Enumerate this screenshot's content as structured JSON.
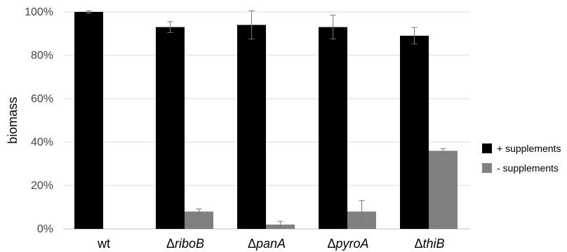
{
  "chart_data": {
    "type": "bar",
    "categories": [
      "wt",
      "riboB",
      "panA",
      "pyroA",
      "thiB"
    ],
    "category_prefix": [
      "",
      "Δ",
      "Δ",
      "Δ",
      "Δ"
    ],
    "series": [
      {
        "name": "+ supplements",
        "color": "#000000",
        "values": [
          100,
          93,
          94,
          93,
          89
        ],
        "errors": [
          0.5,
          2.5,
          6.5,
          5.5,
          3.8
        ]
      },
      {
        "name": "- supplements",
        "color": "#808080",
        "values": [
          null,
          8,
          2,
          8,
          36
        ],
        "errors": [
          null,
          1.2,
          1.5,
          5.0,
          1.0
        ]
      }
    ],
    "ylabel": "biomass",
    "ylim": [
      0,
      100
    ],
    "yticks": [
      0,
      20,
      40,
      60,
      80,
      100
    ],
    "ytick_labels": [
      "0%",
      "20%",
      "40%",
      "60%",
      "80%",
      "100%"
    ],
    "grid": true,
    "legend_position": "right"
  }
}
